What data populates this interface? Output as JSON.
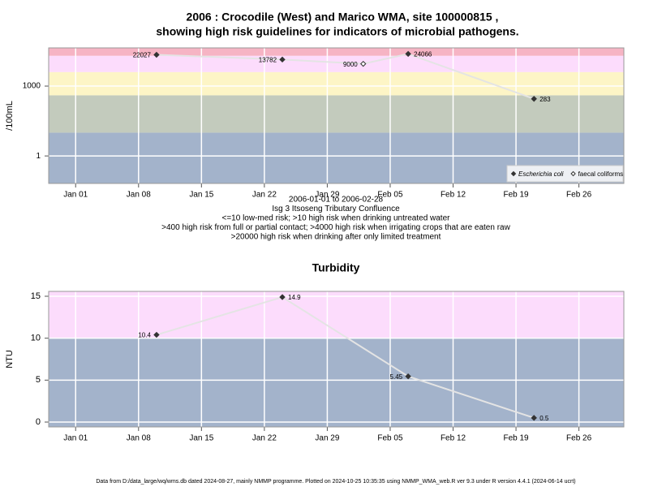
{
  "chart_data": [
    {
      "type": "scatter",
      "title": "2006 : Crocodile (West) and Marico WMA, site 100000815 ,",
      "subtitle": "showing high risk guidelines for indicators of microbial pathogens.",
      "y_label": "/100mL",
      "log_y": true,
      "notes": [
        "2006-01-01 to 2006-02-28",
        "Isg 3 Itsoseng Tributary Confluence",
        "<=10 low-med risk; >10 high risk when drinking untreated water",
        ">400 high risk from full or partial contact; >4000 high risk when irrigating crops that are eaten raw",
        ">20000 high risk when drinking after only limited treatment"
      ],
      "xlim": [
        "2005-12-29",
        "2006-03-03"
      ],
      "xticks": [
        {
          "value": "2006-01-01",
          "label": "Jan 01"
        },
        {
          "value": "2006-01-08",
          "label": "Jan 08"
        },
        {
          "value": "2006-01-15",
          "label": "Jan 15"
        },
        {
          "value": "2006-01-22",
          "label": "Jan 22"
        },
        {
          "value": "2006-01-29",
          "label": "Jan 29"
        },
        {
          "value": "2006-02-05",
          "label": "Feb 05"
        },
        {
          "value": "2006-02-12",
          "label": "Feb 12"
        },
        {
          "value": "2006-02-19",
          "label": "Feb 19"
        },
        {
          "value": "2006-02-26",
          "label": "Feb 26"
        }
      ],
      "ylim": [
        0.066,
        43600
      ],
      "yticks": [
        1,
        1000
      ],
      "thresholds": [
        10,
        400,
        4000,
        20000
      ],
      "band_colors": [
        "#a3b3cb",
        "#c3cbbd",
        "#fdf5c6",
        "#fcdcfc",
        "#f6b4c4"
      ],
      "line_color": "#e4e4e4",
      "grid": true,
      "legend": "bottom-right",
      "series": [
        {
          "name": "Escherichia coli",
          "color": "#333333",
          "marker": "filled",
          "x": [
            "2006-01-10",
            "2006-01-24",
            "2006-02-07",
            "2006-02-21"
          ],
          "values": [
            22027,
            13782,
            24066,
            283
          ]
        },
        {
          "name": "faecal coliforms",
          "color": "#333333",
          "marker": "open",
          "x": [
            "2006-02-02"
          ],
          "values": [
            9000
          ]
        }
      ]
    },
    {
      "type": "scatter",
      "title": "Turbidity",
      "y_label": "NTU",
      "log_y": false,
      "xlim": [
        "2005-12-29",
        "2006-03-03"
      ],
      "xticks": [
        {
          "value": "2006-01-01",
          "label": "Jan 01"
        },
        {
          "value": "2006-01-08",
          "label": "Jan 08"
        },
        {
          "value": "2006-01-15",
          "label": "Jan 15"
        },
        {
          "value": "2006-01-22",
          "label": "Jan 22"
        },
        {
          "value": "2006-01-29",
          "label": "Jan 29"
        },
        {
          "value": "2006-02-05",
          "label": "Feb 05"
        },
        {
          "value": "2006-02-12",
          "label": "Feb 12"
        },
        {
          "value": "2006-02-19",
          "label": "Feb 19"
        },
        {
          "value": "2006-02-26",
          "label": "Feb 26"
        }
      ],
      "ylim": [
        -0.58,
        15.58
      ],
      "yticks": [
        0,
        5,
        10,
        15
      ],
      "thresholds": [
        10
      ],
      "band_colors": [
        "#a3b3cb",
        "#fcdcfc"
      ],
      "line_color": "#e4e4e4",
      "grid": true,
      "series": [
        {
          "color": "#333333",
          "marker": "filled",
          "x": [
            "2006-01-10",
            "2006-01-24",
            "2006-02-07",
            "2006-02-21"
          ],
          "values": [
            10.4,
            14.9,
            5.45,
            0.5
          ]
        }
      ]
    }
  ],
  "footer": "Data from D:/data_large/wq/wms.db dated 2024-08-27, mainly NMMP programme. Plotted on 2024-10-25 10:35:35 using NMMP_WMA_web.R ver 9.3 under R version 4.4.1 (2024-06-14 ucrt)"
}
